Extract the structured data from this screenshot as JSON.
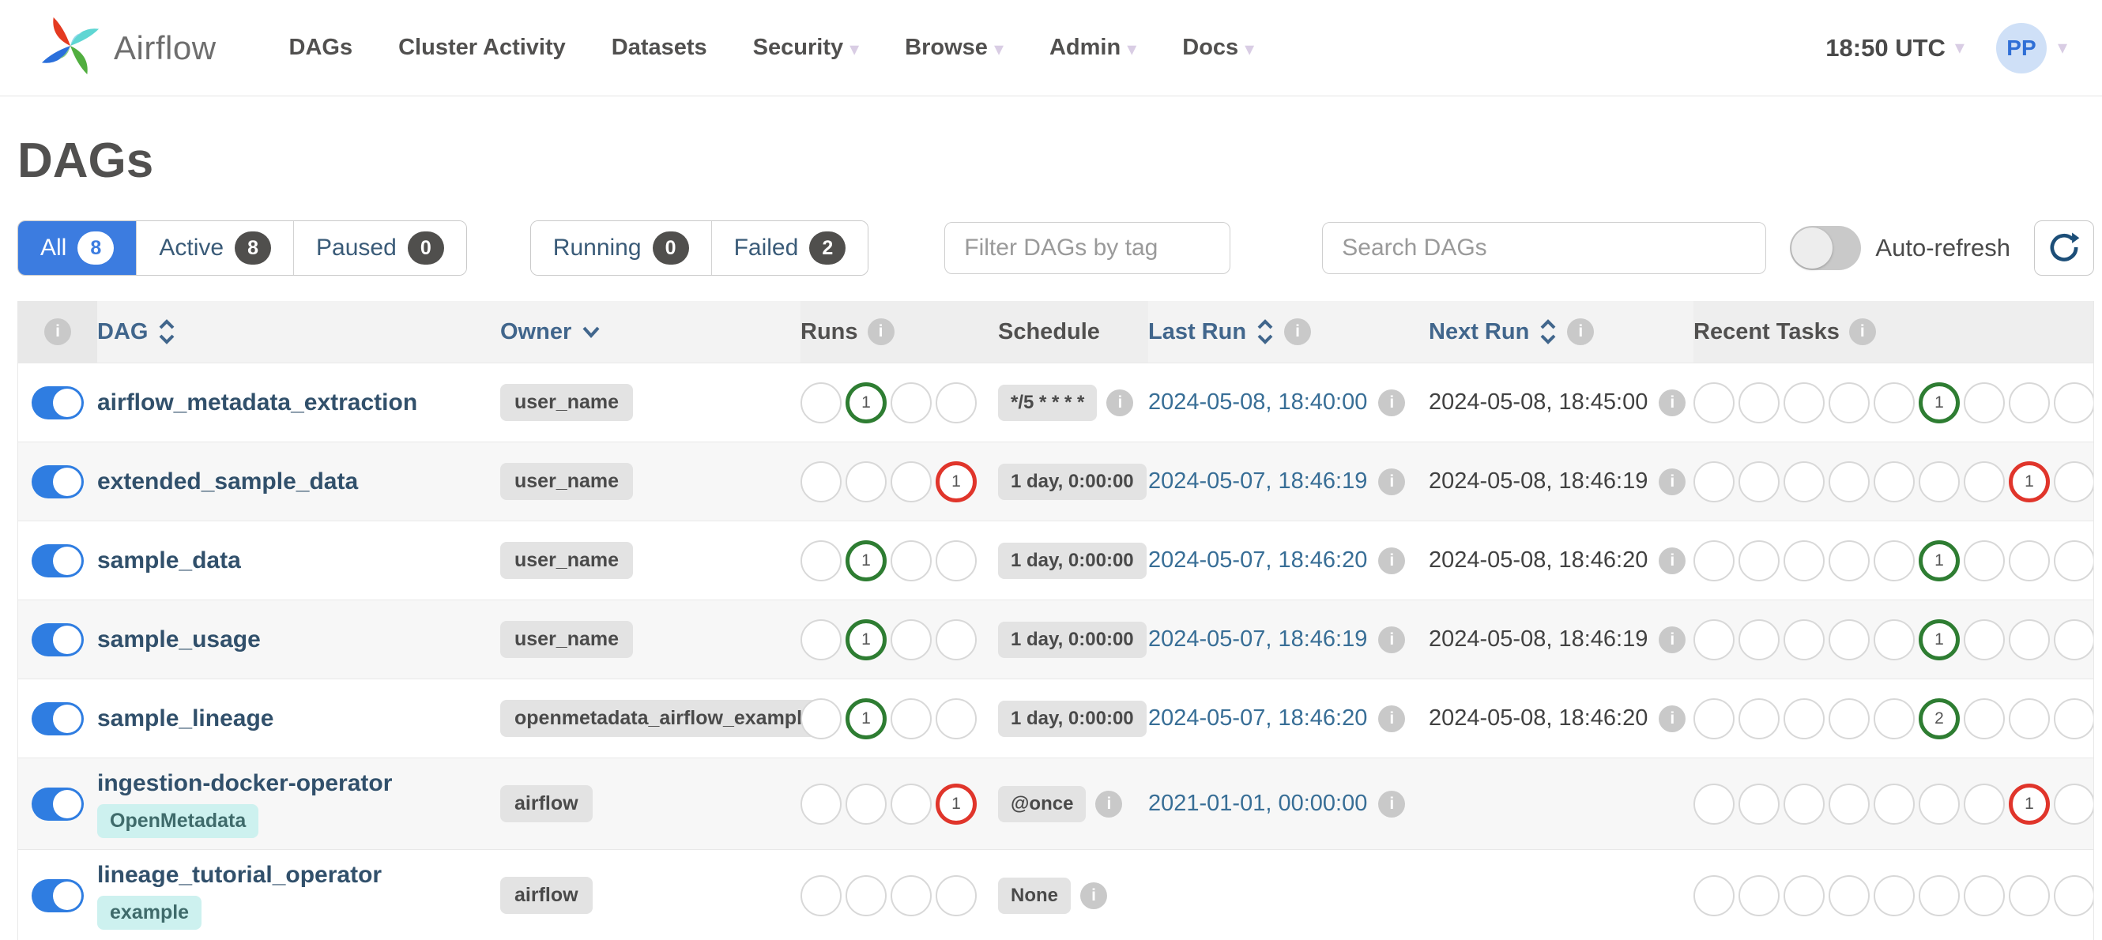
{
  "navbar": {
    "brand": "Airflow",
    "items": [
      {
        "label": "DAGs",
        "caret": false
      },
      {
        "label": "Cluster Activity",
        "caret": false
      },
      {
        "label": "Datasets",
        "caret": false
      },
      {
        "label": "Security",
        "caret": true
      },
      {
        "label": "Browse",
        "caret": true
      },
      {
        "label": "Admin",
        "caret": true
      },
      {
        "label": "Docs",
        "caret": true
      }
    ],
    "clock_label": "18:50 UTC",
    "avatar_initials": "PP"
  },
  "icons": {
    "caret": "▾",
    "info": "i"
  },
  "page_title": "DAGs",
  "filters": {
    "dag_tabs": [
      {
        "label": "All",
        "count": "8",
        "active": true
      },
      {
        "label": "Active",
        "count": "8",
        "active": false
      },
      {
        "label": "Paused",
        "count": "0",
        "active": false
      }
    ],
    "run_tabs": [
      {
        "label": "Running",
        "count": "0",
        "active": false
      },
      {
        "label": "Failed",
        "count": "2",
        "active": false
      }
    ],
    "tag_filter_placeholder": "Filter DAGs by tag",
    "search_placeholder": "Search DAGs",
    "auto_refresh_label": "Auto-refresh",
    "auto_refresh_on": false
  },
  "table": {
    "headers": {
      "dag": "DAG",
      "owner": "Owner",
      "runs": "Runs",
      "schedule": "Schedule",
      "last_run": "Last Run",
      "next_run": "Next Run",
      "recent_tasks": "Recent Tasks"
    },
    "rows": [
      {
        "name": "airflow_metadata_extraction",
        "tags": [],
        "owner": "user_name",
        "enabled": true,
        "runs": [
          {},
          {
            "count": "1",
            "state": "success"
          },
          {},
          {}
        ],
        "schedule": "*/5 * * * *",
        "schedule_info": true,
        "last_run": "2024-05-08, 18:40:00",
        "next_run": "2024-05-08, 18:45:00",
        "recent_tasks": [
          {},
          {},
          {},
          {},
          {},
          {
            "count": "1",
            "state": "success"
          },
          {},
          {},
          {}
        ]
      },
      {
        "name": "extended_sample_data",
        "tags": [],
        "owner": "user_name",
        "enabled": true,
        "runs": [
          {},
          {},
          {},
          {
            "count": "1",
            "state": "failed"
          }
        ],
        "schedule": "1 day, 0:00:00",
        "schedule_info": false,
        "last_run": "2024-05-07, 18:46:19",
        "next_run": "2024-05-08, 18:46:19",
        "recent_tasks": [
          {},
          {},
          {},
          {},
          {},
          {},
          {},
          {
            "count": "1",
            "state": "failed"
          },
          {}
        ]
      },
      {
        "name": "sample_data",
        "tags": [],
        "owner": "user_name",
        "enabled": true,
        "runs": [
          {},
          {
            "count": "1",
            "state": "success"
          },
          {},
          {}
        ],
        "schedule": "1 day, 0:00:00",
        "schedule_info": false,
        "last_run": "2024-05-07, 18:46:20",
        "next_run": "2024-05-08, 18:46:20",
        "recent_tasks": [
          {},
          {},
          {},
          {},
          {},
          {
            "count": "1",
            "state": "success"
          },
          {},
          {},
          {}
        ]
      },
      {
        "name": "sample_usage",
        "tags": [],
        "owner": "user_name",
        "enabled": true,
        "runs": [
          {},
          {
            "count": "1",
            "state": "success"
          },
          {},
          {}
        ],
        "schedule": "1 day, 0:00:00",
        "schedule_info": false,
        "last_run": "2024-05-07, 18:46:19",
        "next_run": "2024-05-08, 18:46:19",
        "recent_tasks": [
          {},
          {},
          {},
          {},
          {},
          {
            "count": "1",
            "state": "success"
          },
          {},
          {},
          {}
        ]
      },
      {
        "name": "sample_lineage",
        "tags": [],
        "owner": "openmetadata_airflow_example",
        "enabled": true,
        "runs": [
          {},
          {
            "count": "1",
            "state": "success"
          },
          {},
          {}
        ],
        "schedule": "1 day, 0:00:00",
        "schedule_info": false,
        "last_run": "2024-05-07, 18:46:20",
        "next_run": "2024-05-08, 18:46:20",
        "recent_tasks": [
          {},
          {},
          {},
          {},
          {},
          {
            "count": "2",
            "state": "success"
          },
          {},
          {},
          {}
        ]
      },
      {
        "name": "ingestion-docker-operator",
        "tags": [
          "OpenMetadata"
        ],
        "owner": "airflow",
        "enabled": true,
        "runs": [
          {},
          {},
          {},
          {
            "count": "1",
            "state": "failed"
          }
        ],
        "schedule": "@once",
        "schedule_info": true,
        "last_run": "2021-01-01, 00:00:00",
        "next_run": "",
        "recent_tasks": [
          {},
          {},
          {},
          {},
          {},
          {},
          {},
          {
            "count": "1",
            "state": "failed"
          },
          {}
        ]
      },
      {
        "name": "lineage_tutorial_operator",
        "tags": [
          "example"
        ],
        "owner": "airflow",
        "enabled": true,
        "runs": [
          {},
          {},
          {},
          {}
        ],
        "schedule": "None",
        "schedule_info": true,
        "last_run": "",
        "next_run": "",
        "recent_tasks": [
          {},
          {},
          {},
          {},
          {},
          {},
          {},
          {},
          {}
        ]
      }
    ]
  },
  "colors": {
    "accent_blue": "#3c7ce0",
    "success_green": "#2e7d32",
    "failed_red": "#e0352b",
    "link_blue": "#386e96",
    "tag_teal": "#cdf1ef"
  }
}
